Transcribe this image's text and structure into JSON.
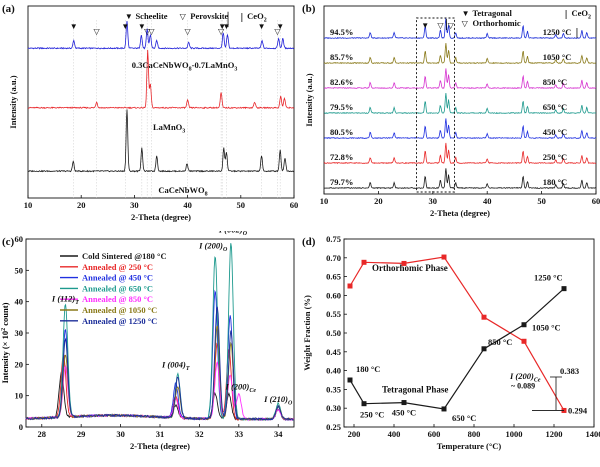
{
  "chart_data": [
    {
      "panel": "(a)",
      "type": "line",
      "title": "",
      "xlabel": "2-Theta (degree)",
      "ylabel": "Intensity (a.u.)",
      "xlim": [
        10,
        60
      ],
      "xticks": [
        10,
        20,
        30,
        40,
        50,
        60
      ],
      "legend": [
        {
          "marker": "▼",
          "label": "Scheelite"
        },
        {
          "marker": "▽",
          "label": "Perovskite"
        },
        {
          "marker": "↓",
          "label": "CeO",
          "sub": "2"
        }
      ],
      "series": [
        {
          "name_main": "0.3CaCeNbWO",
          "name_sub": "8",
          "name_tail": "-0.7LaMnO",
          "name_sub2": "3",
          "color": "#1f1fd8",
          "baseline": 0.78,
          "peaks": [
            [
              18.6,
              0.04
            ],
            [
              28.6,
              0.14
            ],
            [
              31.3,
              0.07
            ],
            [
              32.4,
              0.1
            ],
            [
              33.0,
              0.07
            ],
            [
              34.2,
              0.04
            ],
            [
              40.2,
              0.03
            ],
            [
              46.7,
              0.08
            ],
            [
              47.5,
              0.07
            ],
            [
              54.0,
              0.04
            ],
            [
              57.1,
              0.05
            ],
            [
              57.9,
              0.05
            ]
          ]
        },
        {
          "name_main": "LaMnO",
          "name_sub": "3",
          "color": "#e8262a",
          "baseline": 0.47,
          "peaks": [
            [
              22.9,
              0.03
            ],
            [
              32.5,
              0.3
            ],
            [
              33.0,
              0.12
            ],
            [
              40.0,
              0.04
            ],
            [
              46.3,
              0.08
            ],
            [
              52.6,
              0.03
            ],
            [
              57.5,
              0.06
            ],
            [
              58.2,
              0.05
            ]
          ]
        },
        {
          "name_main": "CaCeNbWO",
          "name_sub": "8",
          "color": "#1a1a1a",
          "baseline": 0.14,
          "peaks": [
            [
              18.5,
              0.05
            ],
            [
              28.6,
              0.32
            ],
            [
              31.4,
              0.12
            ],
            [
              34.2,
              0.08
            ],
            [
              39.9,
              0.04
            ],
            [
              46.8,
              0.12
            ],
            [
              47.3,
              0.1
            ],
            [
              53.9,
              0.08
            ],
            [
              57.4,
              0.11
            ],
            [
              58.3,
              0.07
            ]
          ]
        }
      ],
      "scheelite_markers_x": [
        18.6,
        28.3,
        31.4,
        46.5,
        47.3,
        53.9,
        57.4
      ],
      "perovskite_markers_x": [
        22.9,
        32.4,
        33.2,
        40.0,
        46.3,
        56.9
      ],
      "ceo2_marker_x": 47.6
    },
    {
      "panel": "(b)",
      "type": "line",
      "title": "",
      "xlabel": "2-Theta (degree)",
      "ylabel": "Intensity (a.u.)",
      "xlim": [
        10,
        60
      ],
      "xticks": [
        10,
        20,
        30,
        40,
        50,
        60
      ],
      "legend": [
        {
          "marker": "▼",
          "label": "Tetragonal"
        },
        {
          "marker": "▽",
          "label": "Orthorhomic"
        },
        {
          "marker": "↓",
          "label": "CeO",
          "sub": "2"
        }
      ],
      "series": [
        {
          "name": "1250 °C",
          "percent": "94.5%",
          "color": "#1c2ed8"
        },
        {
          "name": "1050 °C",
          "percent": "85.7%",
          "color": "#8a7a1a"
        },
        {
          "name": "850 °C",
          "percent": "82.6%",
          "color": "#d634d0"
        },
        {
          "name": "650 °C",
          "percent": "79.5%",
          "color": "#1e9a8e"
        },
        {
          "name": "450 °C",
          "percent": "80.5%",
          "color": "#2030e0"
        },
        {
          "name": "250 °C",
          "percent": "72.8%",
          "color": "#e82828"
        },
        {
          "name": "180 °C",
          "percent": "79.7%",
          "color": "#1a1a1a"
        }
      ],
      "peaks": [
        [
          18.5,
          0.25
        ],
        [
          22.9,
          0.25
        ],
        [
          28.6,
          0.55
        ],
        [
          31.4,
          0.35
        ],
        [
          32.4,
          0.9
        ],
        [
          32.9,
          0.6
        ],
        [
          34.2,
          0.25
        ],
        [
          40.0,
          0.2
        ],
        [
          46.6,
          0.55
        ],
        [
          47.4,
          0.3
        ],
        [
          52.6,
          0.15
        ],
        [
          54.0,
          0.2
        ],
        [
          57.4,
          0.35
        ],
        [
          58.3,
          0.25
        ]
      ],
      "box_x": [
        27,
        34
      ],
      "ceo2_marker_x": 56.5
    },
    {
      "panel": "(c)",
      "type": "line",
      "title": "",
      "xlabel": "2-Theta (degree)",
      "ylabel": "Intensity (× 10",
      "ylabel_sup": "2",
      "ylabel_tail": " count)",
      "xlim": [
        27.6,
        34.4
      ],
      "ylim": [
        0,
        60
      ],
      "xticks": [
        28,
        29,
        30,
        31,
        32,
        33,
        34
      ],
      "yticks": [
        0,
        10,
        20,
        30,
        40,
        50,
        60
      ],
      "series": [
        {
          "name": "Cold Sintered @180 °C",
          "color": "#1a1a1a",
          "peaks": [
            [
              28.5,
              14
            ],
            [
              31.4,
              4
            ],
            [
              32.4,
              8
            ],
            [
              32.75,
              8
            ],
            [
              34.0,
              3
            ]
          ]
        },
        {
          "name": "Annealed @ 250 °C",
          "color": "#e82828",
          "peaks": [
            [
              28.55,
              20
            ],
            [
              31.4,
              7
            ],
            [
              32.45,
              24
            ],
            [
              32.75,
              22
            ],
            [
              34.0,
              4
            ]
          ]
        },
        {
          "name": "Annealed @ 450 °C",
          "color": "#2030e0",
          "peaks": [
            [
              28.6,
              28
            ],
            [
              31.4,
              11
            ],
            [
              32.4,
              41
            ],
            [
              32.78,
              33
            ],
            [
              34.0,
              4
            ]
          ]
        },
        {
          "name": "Annealed @ 650 °C",
          "color": "#1e9a8e",
          "peaks": [
            [
              28.6,
              36
            ],
            [
              31.45,
              14
            ],
            [
              32.4,
              52
            ],
            [
              32.8,
              56
            ],
            [
              34.0,
              5
            ]
          ]
        },
        {
          "name": "Annealed @ 850 °C",
          "color": "#ff30ff",
          "peaks": [
            [
              28.6,
              16
            ],
            [
              31.4,
              6
            ],
            [
              32.45,
              18
            ],
            [
              32.78,
              14
            ],
            [
              33.0,
              8
            ],
            [
              34.0,
              3
            ]
          ]
        },
        {
          "name": "Annealed @ 1050 °C",
          "color": "#8a7a1a",
          "peaks": [
            [
              28.6,
              20
            ],
            [
              31.45,
              10
            ],
            [
              32.45,
              30
            ],
            [
              32.8,
              24
            ],
            [
              34.0,
              4
            ]
          ]
        },
        {
          "name": "Annealed @ 1250 °C",
          "color": "#1c2e9a",
          "peaks": [
            [
              28.6,
              25
            ],
            [
              31.45,
              13
            ],
            [
              32.45,
              36
            ],
            [
              32.8,
              28
            ],
            [
              34.0,
              4
            ]
          ]
        }
      ],
      "annotations": [
        {
          "text": "I (112)",
          "sub": "T",
          "x": 28.6,
          "y": 40
        },
        {
          "text": "I (004)",
          "sub": "T",
          "x": 31.4,
          "y": 19
        },
        {
          "text": "I (200)",
          "sub": "O",
          "x": 32.35,
          "y": 57
        },
        {
          "text": "I (002)",
          "sub": "O",
          "x": 32.85,
          "y": 62
        },
        {
          "text": "I (200)",
          "sub": "Ce",
          "x": 33.05,
          "y": 12
        },
        {
          "text": "I (210)",
          "sub": "O",
          "x": 34.0,
          "y": 8
        }
      ]
    },
    {
      "panel": "(d)",
      "type": "line",
      "title": "",
      "xlabel": "Temperature (°C)",
      "ylabel": "Weight Fraction (%)",
      "xlim": [
        150,
        1400
      ],
      "ylim": [
        0.25,
        0.75
      ],
      "xticks": [
        200,
        400,
        600,
        800,
        1000,
        1200,
        1400
      ],
      "yticks": [
        0.25,
        0.3,
        0.35,
        0.4,
        0.45,
        0.5,
        0.55,
        0.6,
        0.65,
        0.7,
        0.75
      ],
      "series": [
        {
          "name": "Orthorhomic Phase",
          "color": "#e82828",
          "x": [
            180,
            250,
            450,
            650,
            850,
            1050,
            1250
          ],
          "y": [
            0.625,
            0.688,
            0.685,
            0.702,
            0.542,
            0.478,
            0.294
          ]
        },
        {
          "name": "Tetragonal Phase",
          "color": "#1a1a1a",
          "x": [
            180,
            250,
            450,
            650,
            850,
            1050,
            1250
          ],
          "y": [
            0.375,
            0.312,
            0.315,
            0.298,
            0.458,
            0.522,
            0.618
          ]
        }
      ],
      "point_labels": [
        "180 °C",
        "250 °C",
        "450 °C",
        "650 °C",
        "850 °C",
        "1050 °C",
        "1250 °C"
      ],
      "annotations": {
        "ice": "I (200)",
        "ice_sub": "Ce",
        "approx": "~ 0.089",
        "v1": "0.383",
        "v2": "0.294"
      }
    }
  ]
}
